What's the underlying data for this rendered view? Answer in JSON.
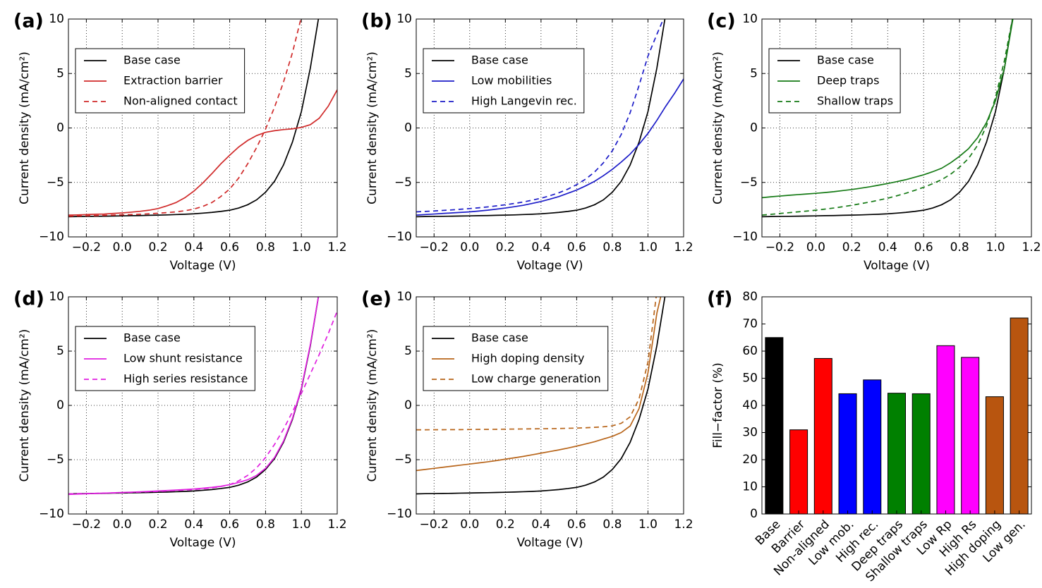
{
  "chart_data": [
    {
      "type": "line",
      "label": "(a)",
      "xlabel": "Voltage (V)",
      "ylabel": "Current density (mA/cm²)",
      "grid": true,
      "legend": "upper left",
      "xlim": [
        -0.3,
        1.2
      ],
      "ylim": [
        -10,
        10
      ],
      "xticks": [
        {
          "value": -0.2,
          "label": "−0.2"
        },
        {
          "value": 0,
          "label": "0.0"
        },
        0.2,
        0.4,
        0.6,
        0.8,
        {
          "value": 1,
          "label": "1.0"
        },
        1.2
      ],
      "yticks": [
        {
          "value": -10,
          "label": "−10"
        },
        {
          "value": -5,
          "label": "−5"
        },
        0,
        5,
        10
      ],
      "x": [
        -0.3,
        -0.25,
        -0.2,
        -0.15,
        -0.1,
        -0.05,
        0,
        0.05,
        0.1,
        0.15,
        0.2,
        0.25,
        0.3,
        0.35,
        0.4,
        0.45,
        0.5,
        0.55,
        0.6,
        0.65,
        0.7,
        0.75,
        0.8,
        0.85,
        0.9,
        0.95,
        1.0,
        1.05,
        1.1,
        1.15,
        1.2
      ],
      "series": [
        {
          "name": "Base case",
          "color": "#000000",
          "dashed": false,
          "values": [
            -8.15,
            -8.13,
            -8.12,
            -8.11,
            -8.1,
            -8.08,
            -8.07,
            -8.05,
            -8.04,
            -8.02,
            -8.0,
            -7.98,
            -7.95,
            -7.92,
            -7.88,
            -7.82,
            -7.75,
            -7.66,
            -7.55,
            -7.35,
            -7.05,
            -6.6,
            -5.9,
            -4.9,
            -3.4,
            -1.3,
            1.5,
            5.5,
            10.5,
            null,
            null
          ]
        },
        {
          "name": "Extraction barrier",
          "color": "#d02a2a",
          "dashed": false,
          "values": [
            -8.0,
            -7.98,
            -7.95,
            -7.92,
            -7.9,
            -7.85,
            -7.8,
            -7.73,
            -7.65,
            -7.55,
            -7.4,
            -7.15,
            -6.85,
            -6.4,
            -5.8,
            -5.05,
            -4.2,
            -3.3,
            -2.5,
            -1.75,
            -1.15,
            -0.7,
            -0.4,
            -0.25,
            -0.15,
            -0.08,
            0.05,
            0.3,
            0.9,
            2.0,
            3.5
          ]
        },
        {
          "name": "Non-aligned contact",
          "color": "#d02a2a",
          "dashed": true,
          "values": [
            -8.1,
            -8.08,
            -8.06,
            -8.04,
            -8.02,
            -8.0,
            -7.98,
            -7.95,
            -7.92,
            -7.88,
            -7.83,
            -7.77,
            -7.7,
            -7.6,
            -7.45,
            -7.2,
            -6.85,
            -6.3,
            -5.6,
            -4.6,
            -3.3,
            -1.8,
            -0.1,
            1.9,
            4.2,
            6.9,
            10.2,
            null,
            null,
            null,
            null
          ]
        }
      ]
    },
    {
      "type": "line",
      "label": "(b)",
      "xlabel": "Voltage (V)",
      "ylabel": "Current density (mA/cm²)",
      "grid": true,
      "legend": "upper left",
      "xlim": [
        -0.3,
        1.2
      ],
      "ylim": [
        -10,
        10
      ],
      "xticks": [
        {
          "value": -0.2,
          "label": "−0.2"
        },
        {
          "value": 0,
          "label": "0.0"
        },
        0.2,
        0.4,
        0.6,
        0.8,
        {
          "value": 1,
          "label": "1.0"
        },
        1.2
      ],
      "yticks": [
        {
          "value": -10,
          "label": "−10"
        },
        {
          "value": -5,
          "label": "−5"
        },
        0,
        5,
        10
      ],
      "x": [
        -0.3,
        -0.25,
        -0.2,
        -0.15,
        -0.1,
        -0.05,
        0,
        0.05,
        0.1,
        0.15,
        0.2,
        0.25,
        0.3,
        0.35,
        0.4,
        0.45,
        0.5,
        0.55,
        0.6,
        0.65,
        0.7,
        0.75,
        0.8,
        0.85,
        0.9,
        0.95,
        1.0,
        1.05,
        1.1,
        1.15,
        1.2
      ],
      "series": [
        {
          "name": "Base case",
          "color": "#000000",
          "dashed": false,
          "values": [
            -8.15,
            -8.13,
            -8.12,
            -8.11,
            -8.1,
            -8.08,
            -8.07,
            -8.05,
            -8.04,
            -8.02,
            -8.0,
            -7.98,
            -7.95,
            -7.92,
            -7.88,
            -7.82,
            -7.75,
            -7.66,
            -7.55,
            -7.35,
            -7.05,
            -6.6,
            -5.9,
            -4.9,
            -3.4,
            -1.3,
            1.5,
            5.5,
            10.5,
            null,
            null
          ]
        },
        {
          "name": "Low mobilities",
          "color": "#1c1cc8",
          "dashed": false,
          "values": [
            -8.0,
            -7.95,
            -7.9,
            -7.85,
            -7.8,
            -7.75,
            -7.7,
            -7.63,
            -7.55,
            -7.45,
            -7.35,
            -7.23,
            -7.1,
            -6.93,
            -6.75,
            -6.53,
            -6.3,
            -6.0,
            -5.7,
            -5.32,
            -4.9,
            -4.38,
            -3.8,
            -3.13,
            -2.4,
            -1.5,
            -0.5,
            0.7,
            2.0,
            3.2,
            4.5
          ]
        },
        {
          "name": "High Langevin rec.",
          "color": "#1c1cc8",
          "dashed": true,
          "values": [
            -7.7,
            -7.66,
            -7.62,
            -7.57,
            -7.52,
            -7.46,
            -7.4,
            -7.33,
            -7.25,
            -7.15,
            -7.05,
            -6.93,
            -6.8,
            -6.63,
            -6.45,
            -6.22,
            -5.95,
            -5.62,
            -5.2,
            -4.7,
            -4.05,
            -3.2,
            -2.1,
            -0.6,
            1.4,
            3.9,
            6.6,
            8.6,
            10.5,
            null,
            null
          ]
        }
      ]
    },
    {
      "type": "line",
      "label": "(c)",
      "xlabel": "Voltage (V)",
      "ylabel": "Current density (mA/cm²)",
      "grid": true,
      "legend": "upper left",
      "xlim": [
        -0.3,
        1.2
      ],
      "ylim": [
        -10,
        10
      ],
      "xticks": [
        {
          "value": -0.2,
          "label": "−0.2"
        },
        {
          "value": 0,
          "label": "0.0"
        },
        0.2,
        0.4,
        0.6,
        0.8,
        {
          "value": 1,
          "label": "1.0"
        },
        1.2
      ],
      "yticks": [
        {
          "value": -10,
          "label": "−10"
        },
        {
          "value": -5,
          "label": "−5"
        },
        0,
        5,
        10
      ],
      "x": [
        -0.3,
        -0.25,
        -0.2,
        -0.15,
        -0.1,
        -0.05,
        0,
        0.05,
        0.1,
        0.15,
        0.2,
        0.25,
        0.3,
        0.35,
        0.4,
        0.45,
        0.5,
        0.55,
        0.6,
        0.65,
        0.7,
        0.75,
        0.8,
        0.85,
        0.9,
        0.95,
        1.0,
        1.05,
        1.1,
        1.15,
        1.2
      ],
      "series": [
        {
          "name": "Base case",
          "color": "#000000",
          "dashed": false,
          "values": [
            -8.15,
            -8.13,
            -8.12,
            -8.11,
            -8.1,
            -8.08,
            -8.07,
            -8.05,
            -8.04,
            -8.02,
            -8.0,
            -7.98,
            -7.95,
            -7.92,
            -7.88,
            -7.82,
            -7.75,
            -7.66,
            -7.55,
            -7.35,
            -7.05,
            -6.6,
            -5.9,
            -4.9,
            -3.4,
            -1.3,
            1.5,
            5.5,
            10.5,
            null,
            null
          ]
        },
        {
          "name": "Deep traps",
          "color": "#157a15",
          "dashed": false,
          "values": [
            -6.4,
            -6.32,
            -6.25,
            -6.18,
            -6.12,
            -6.06,
            -6.0,
            -5.93,
            -5.85,
            -5.75,
            -5.65,
            -5.53,
            -5.4,
            -5.25,
            -5.1,
            -4.93,
            -4.75,
            -4.53,
            -4.3,
            -4.02,
            -3.7,
            -3.2,
            -2.6,
            -1.9,
            -0.9,
            0.5,
            2.5,
            5.5,
            10.3,
            null,
            null
          ]
        },
        {
          "name": "Shallow traps",
          "color": "#157a15",
          "dashed": true,
          "values": [
            -8.0,
            -7.93,
            -7.85,
            -7.78,
            -7.7,
            -7.63,
            -7.55,
            -7.45,
            -7.35,
            -7.23,
            -7.1,
            -6.95,
            -6.8,
            -6.63,
            -6.45,
            -6.23,
            -6.0,
            -5.73,
            -5.45,
            -5.12,
            -4.75,
            -4.25,
            -3.6,
            -2.8,
            -1.6,
            0.2,
            2.8,
            6.2,
            10.5,
            null,
            null
          ]
        }
      ]
    },
    {
      "type": "line",
      "label": "(d)",
      "xlabel": "Voltage (V)",
      "ylabel": "Current density (mA/cm²)",
      "grid": true,
      "legend": "upper left",
      "xlim": [
        -0.3,
        1.2
      ],
      "ylim": [
        -10,
        10
      ],
      "xticks": [
        {
          "value": -0.2,
          "label": "−0.2"
        },
        {
          "value": 0,
          "label": "0.0"
        },
        0.2,
        0.4,
        0.6,
        0.8,
        {
          "value": 1,
          "label": "1.0"
        },
        1.2
      ],
      "yticks": [
        {
          "value": -10,
          "label": "−10"
        },
        {
          "value": -5,
          "label": "−5"
        },
        0,
        5,
        10
      ],
      "x": [
        -0.3,
        -0.25,
        -0.2,
        -0.15,
        -0.1,
        -0.05,
        0,
        0.05,
        0.1,
        0.15,
        0.2,
        0.25,
        0.3,
        0.35,
        0.4,
        0.45,
        0.5,
        0.55,
        0.6,
        0.65,
        0.7,
        0.75,
        0.8,
        0.85,
        0.9,
        0.95,
        1.0,
        1.05,
        1.1,
        1.15,
        1.2
      ],
      "series": [
        {
          "name": "Base case",
          "color": "#000000",
          "dashed": false,
          "values": [
            -8.15,
            -8.13,
            -8.12,
            -8.11,
            -8.1,
            -8.08,
            -8.07,
            -8.05,
            -8.04,
            -8.02,
            -8.0,
            -7.98,
            -7.95,
            -7.92,
            -7.88,
            -7.82,
            -7.75,
            -7.66,
            -7.55,
            -7.35,
            -7.05,
            -6.6,
            -5.9,
            -4.9,
            -3.4,
            -1.3,
            1.5,
            5.5,
            10.5,
            null,
            null
          ]
        },
        {
          "name": "Low shunt resistance",
          "color": "#e020e0",
          "dashed": false,
          "values": [
            -8.2,
            -8.17,
            -8.14,
            -8.11,
            -8.08,
            -8.05,
            -8.02,
            -7.99,
            -7.96,
            -7.92,
            -7.88,
            -7.84,
            -7.8,
            -7.75,
            -7.7,
            -7.63,
            -7.55,
            -7.45,
            -7.3,
            -7.1,
            -6.85,
            -6.45,
            -5.8,
            -4.8,
            -3.3,
            -1.2,
            1.6,
            5.6,
            10.5,
            null,
            null
          ]
        },
        {
          "name": "High series resistance",
          "color": "#e020e0",
          "dashed": true,
          "values": [
            -8.15,
            -8.13,
            -8.12,
            -8.1,
            -8.08,
            -8.06,
            -8.04,
            -8.01,
            -7.98,
            -7.95,
            -7.92,
            -7.88,
            -7.84,
            -7.8,
            -7.75,
            -7.68,
            -7.6,
            -7.47,
            -7.3,
            -6.95,
            -6.45,
            -5.75,
            -4.8,
            -3.6,
            -2.2,
            -0.6,
            1.1,
            2.9,
            4.7,
            6.6,
            8.7
          ]
        }
      ]
    },
    {
      "type": "line",
      "label": "(e)",
      "xlabel": "Voltage (V)",
      "ylabel": "Current density (mA/cm²)",
      "grid": true,
      "legend": "upper left",
      "xlim": [
        -0.3,
        1.2
      ],
      "ylim": [
        -10,
        10
      ],
      "xticks": [
        {
          "value": -0.2,
          "label": "−0.2"
        },
        {
          "value": 0,
          "label": "0.0"
        },
        0.2,
        0.4,
        0.6,
        0.8,
        {
          "value": 1,
          "label": "1.0"
        },
        1.2
      ],
      "yticks": [
        {
          "value": -10,
          "label": "−10"
        },
        {
          "value": -5,
          "label": "−5"
        },
        0,
        5,
        10
      ],
      "x": [
        -0.3,
        -0.25,
        -0.2,
        -0.15,
        -0.1,
        -0.05,
        0,
        0.05,
        0.1,
        0.15,
        0.2,
        0.25,
        0.3,
        0.35,
        0.4,
        0.45,
        0.5,
        0.55,
        0.6,
        0.65,
        0.7,
        0.75,
        0.8,
        0.85,
        0.9,
        0.95,
        1.0,
        1.05,
        1.1,
        1.15,
        1.2
      ],
      "series": [
        {
          "name": "Base case",
          "color": "#000000",
          "dashed": false,
          "values": [
            -8.15,
            -8.13,
            -8.12,
            -8.11,
            -8.1,
            -8.08,
            -8.07,
            -8.05,
            -8.04,
            -8.02,
            -8.0,
            -7.98,
            -7.95,
            -7.92,
            -7.88,
            -7.82,
            -7.75,
            -7.66,
            -7.55,
            -7.35,
            -7.05,
            -6.6,
            -5.9,
            -4.9,
            -3.4,
            -1.3,
            1.5,
            5.5,
            10.5,
            null,
            null
          ]
        },
        {
          "name": "High doping density",
          "color": "#b8651a",
          "dashed": false,
          "values": [
            -6.0,
            -5.9,
            -5.8,
            -5.7,
            -5.6,
            -5.5,
            -5.4,
            -5.3,
            -5.2,
            -5.08,
            -4.95,
            -4.83,
            -4.7,
            -4.55,
            -4.4,
            -4.25,
            -4.1,
            -3.93,
            -3.75,
            -3.55,
            -3.35,
            -3.1,
            -2.85,
            -2.5,
            -1.9,
            -0.3,
            3.0,
            8.5,
            12,
            null,
            null
          ]
        },
        {
          "name": "Low charge generation",
          "color": "#b8651a",
          "dashed": true,
          "values": [
            -2.25,
            -2.25,
            -2.24,
            -2.24,
            -2.23,
            -2.23,
            -2.22,
            -2.21,
            -2.21,
            -2.2,
            -2.19,
            -2.18,
            -2.17,
            -2.16,
            -2.15,
            -2.14,
            -2.13,
            -2.11,
            -2.09,
            -2.06,
            -2.02,
            -1.97,
            -1.88,
            -1.65,
            -1.05,
            0.6,
            4.0,
            10.5,
            null,
            null,
            null
          ]
        }
      ]
    },
    {
      "type": "bar",
      "label": "(f)",
      "ylabel": "Fill−factor (%)",
      "grid": false,
      "ylim": [
        0,
        80
      ],
      "yticks": [
        0,
        10,
        20,
        30,
        40,
        50,
        60,
        70,
        80
      ],
      "categories": [
        "Base",
        "Barrier",
        "Non-aligned",
        "Low mob.",
        "High rec.",
        "Deep traps",
        "Shallow traps",
        "Low Rp",
        "High Rs",
        "High doping",
        "Low gen."
      ],
      "values": [
        65,
        31,
        57.3,
        44.3,
        49.4,
        44.5,
        44.3,
        62,
        57.7,
        43.2,
        72.2
      ],
      "colors": [
        "#000000",
        "#ff0000",
        "#ff0000",
        "#0000ff",
        "#0000ff",
        "#008000",
        "#008000",
        "#ff00ff",
        "#ff00ff",
        "#b8550f",
        "#b8550f"
      ]
    }
  ]
}
